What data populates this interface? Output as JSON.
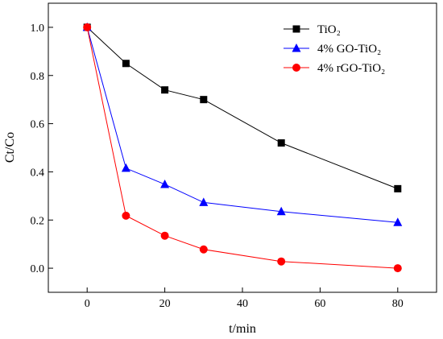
{
  "chart_data": {
    "type": "line",
    "xlabel": "t/min",
    "ylabel": "Ct/Co",
    "xlim": [
      -10,
      90
    ],
    "ylim": [
      -0.1,
      1.1
    ],
    "xticks": [
      0,
      20,
      40,
      60,
      80
    ],
    "xtick_labels": [
      "0",
      "20",
      "40",
      "60",
      "80"
    ],
    "yticks": [
      0.0,
      0.2,
      0.4,
      0.6,
      0.8,
      1.0
    ],
    "ytick_labels": [
      "0.0",
      "0.2",
      "0.4",
      "0.6",
      "0.8",
      "1.0"
    ],
    "legend_position": "top-right",
    "grid": false,
    "x": [
      0,
      10,
      20,
      30,
      50,
      80
    ],
    "series": [
      {
        "name": "TiO₂",
        "values": [
          1.0,
          0.85,
          0.74,
          0.7,
          0.52,
          0.33
        ],
        "color": "#000000",
        "marker": "square"
      },
      {
        "name": "4% GO-TiO₂",
        "values": [
          1.0,
          0.415,
          0.348,
          0.273,
          0.235,
          0.19
        ],
        "color": "#0000ff",
        "marker": "triangle"
      },
      {
        "name": "4% rGO-TiO₂",
        "values": [
          1.0,
          0.218,
          0.135,
          0.078,
          0.028,
          0.0
        ],
        "color": "#ff0000",
        "marker": "circle"
      }
    ]
  }
}
